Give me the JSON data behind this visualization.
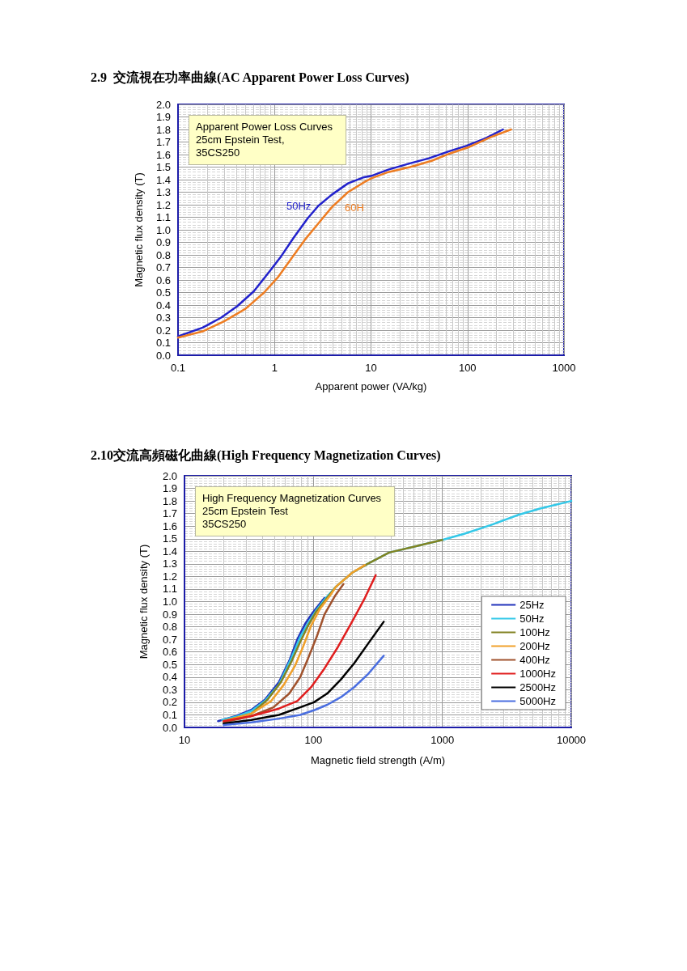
{
  "chart_data": [
    {
      "type": "line",
      "title": "2.9  交流視在功率曲線(AC Apparent Power Loss Curves)",
      "xlabel": "Apparent power (VA/kg)",
      "ylabel": "Magnetic flux density (T)",
      "annotations": [
        "Apparent Power Loss Curves\n25cm Epstein Test,\n35CS250"
      ],
      "log": "x",
      "grid": true,
      "xlim": [
        0.1,
        1000
      ],
      "xticks": [
        0.1,
        1,
        10,
        100,
        1000
      ],
      "ylim": [
        0,
        2
      ],
      "yticks": [
        {
          "value": 0,
          "label": "0.0"
        },
        0.1,
        0.2,
        0.3,
        0.4,
        0.5,
        0.6,
        0.7,
        0.8,
        0.9,
        {
          "value": 1,
          "label": "1.0"
        },
        1.1,
        1.2,
        1.3,
        1.4,
        1.5,
        1.6,
        1.7,
        1.8,
        1.9,
        {
          "value": 2,
          "label": "2.0"
        }
      ],
      "series": [
        {
          "name": "50Hz",
          "color": "#2222cc",
          "x": [
            0.1,
            0.18,
            0.28,
            0.41,
            0.61,
            0.89,
            1.15,
            1.59,
            2.2,
            2.84,
            3.92,
            5.77,
            8.5,
            10.1,
            15.1,
            25.3,
            39.8,
            66.6,
            98,
            154,
            233
          ],
          "values": [
            0.15,
            0.22,
            0.3,
            0.39,
            0.51,
            0.67,
            0.78,
            0.94,
            1.09,
            1.19,
            1.28,
            1.37,
            1.42,
            1.43,
            1.48,
            1.53,
            1.57,
            1.63,
            1.67,
            1.73,
            1.8
          ]
        },
        {
          "name": "60H",
          "color": "#ee7d22",
          "x": [
            0.1,
            0.18,
            0.3,
            0.5,
            0.78,
            1.08,
            1.49,
            2.06,
            2.84,
            3.92,
            5.77,
            8.5,
            10.1,
            15.1,
            25.3,
            42.5,
            66.6,
            104,
            175,
            283
          ],
          "values": [
            0.14,
            0.19,
            0.27,
            0.37,
            0.5,
            0.62,
            0.77,
            0.92,
            1.05,
            1.18,
            1.3,
            1.38,
            1.41,
            1.46,
            1.5,
            1.55,
            1.61,
            1.66,
            1.74,
            1.8
          ]
        }
      ]
    },
    {
      "type": "line",
      "title": "2.10交流高頻磁化曲線(High Frequency Magnetization Curves)",
      "xlabel": "Magnetic field strength (A/m)",
      "ylabel": "Magnetic flux density (T)",
      "annotations": [
        "High Frequency Magnetization Curves\n25cm Epstein Test\n35CS250"
      ],
      "log": "x",
      "grid": true,
      "legend": "bottom right",
      "xlim": [
        10,
        10000
      ],
      "xticks": [
        10,
        100,
        1000,
        10000
      ],
      "ylim": [
        0,
        2
      ],
      "yticks": [
        {
          "value": 0,
          "label": "0.0"
        },
        0.1,
        0.2,
        0.3,
        0.4,
        0.5,
        0.6,
        0.7,
        0.8,
        0.9,
        {
          "value": 1,
          "label": "1.0"
        },
        1.1,
        1.2,
        1.3,
        1.4,
        1.5,
        1.6,
        1.7,
        1.8,
        1.9,
        {
          "value": 2,
          "label": "2.0"
        }
      ],
      "series": [
        {
          "name": "25Hz",
          "color": "#2233bb",
          "x": [
            18.2,
            25,
            33,
            42,
            54,
            65,
            75,
            87,
            100,
            122
          ],
          "values": [
            0.05,
            0.09,
            0.14,
            0.22,
            0.36,
            0.53,
            0.7,
            0.83,
            0.92,
            1.03
          ]
        },
        {
          "name": "50Hz",
          "color": "#33c8e8",
          "x": [
            19.6,
            26,
            33,
            42,
            54,
            68,
            79,
            91,
            105,
            125,
            150,
            200,
            263,
            386,
            625,
            1000,
            1490,
            2400,
            3890,
            5720,
            10000
          ],
          "values": [
            0.06,
            0.09,
            0.13,
            0.21,
            0.34,
            0.56,
            0.72,
            0.83,
            0.93,
            1.03,
            1.12,
            1.23,
            1.3,
            1.39,
            1.44,
            1.49,
            1.54,
            1.61,
            1.69,
            1.74,
            1.8
          ]
        },
        {
          "name": "100Hz",
          "color": "#838322",
          "x": [
            20.1,
            33,
            44,
            56,
            68,
            79,
            91,
            105,
            128,
            150,
            200,
            263,
            386,
            625,
            1000
          ],
          "values": [
            0.05,
            0.11,
            0.22,
            0.36,
            0.53,
            0.68,
            0.81,
            0.92,
            1.03,
            1.12,
            1.23,
            1.3,
            1.39,
            1.44,
            1.49
          ]
        },
        {
          "name": "200Hz",
          "color": "#f0a02a",
          "x": [
            20.1,
            33,
            47,
            59,
            72,
            83,
            96,
            112,
            135,
            150,
            200,
            250
          ],
          "values": [
            0.05,
            0.11,
            0.21,
            0.34,
            0.49,
            0.64,
            0.81,
            0.94,
            1.05,
            1.12,
            1.23,
            1.29
          ]
        },
        {
          "name": "400Hz",
          "color": "#a0522d",
          "x": [
            20.1,
            33,
            49,
            65,
            79,
            91,
            106,
            122,
            148,
            171
          ],
          "values": [
            0.04,
            0.09,
            0.16,
            0.27,
            0.4,
            0.55,
            0.72,
            0.9,
            1.05,
            1.14
          ]
        },
        {
          "name": "1000Hz",
          "color": "#e01e1e",
          "x": [
            20.1,
            33,
            54,
            75,
            96,
            122,
            155,
            197,
            251,
            304
          ],
          "values": [
            0.05,
            0.09,
            0.15,
            0.21,
            0.32,
            0.47,
            0.64,
            0.83,
            1.03,
            1.21
          ]
        },
        {
          "name": "2500Hz",
          "color": "#000000",
          "x": [
            20.1,
            33,
            54,
            79,
            101,
            128,
            163,
            207,
            263,
            351
          ],
          "values": [
            0.03,
            0.06,
            0.1,
            0.16,
            0.2,
            0.27,
            0.38,
            0.51,
            0.66,
            0.84
          ]
        },
        {
          "name": "5000Hz",
          "color": "#4a6ee0",
          "x": [
            20.1,
            33,
            54,
            79,
            103,
            128,
            163,
            207,
            263,
            351
          ],
          "values": [
            0.02,
            0.04,
            0.07,
            0.1,
            0.14,
            0.18,
            0.24,
            0.32,
            0.42,
            0.57
          ]
        }
      ]
    }
  ]
}
